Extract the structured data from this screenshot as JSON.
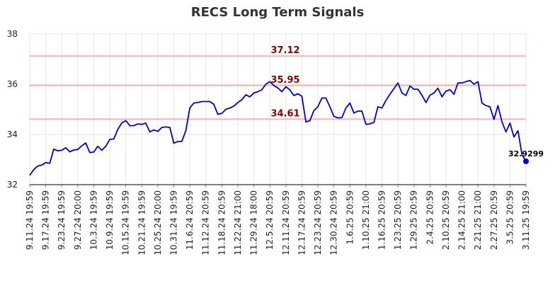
{
  "chart_data": {
    "type": "line",
    "title": "RECS Long Term Signals",
    "xlabel": "",
    "ylabel": "",
    "ylim": [
      32,
      38
    ],
    "yticks": [
      32,
      34,
      36,
      38
    ],
    "grid": true,
    "colors": {
      "line": "#0000cc",
      "ref_line": "#f5b5b5",
      "ref_label": "#8b0000",
      "grid": "#e6e6e6",
      "axis": "#000000"
    },
    "x_tick_labels": [
      "9.11.24 19:59",
      "9.17.24 19:59",
      "9.23.24 19:59",
      "9.27.24 20:00",
      "10.3.24 19:59",
      "10.9.24 19:59",
      "10.15.24 19:59",
      "10.21.24 19:59",
      "10.25.24 20:00",
      "10.31.24 19:59",
      "11.6.24 20:59",
      "11.12.24 20:59",
      "11.18.24 20:59",
      "11.22.24 21:00",
      "11.29.24 18:00",
      "12.5.24 20:59",
      "12.11.24 20:59",
      "12.17.24 20:59",
      "12.23.24 20:59",
      "12.30.24 20:59",
      "1.6.25 20:59",
      "1.10.25 21:00",
      "1.16.25 20:59",
      "1.23.25 20:59",
      "1.29.25 20:59",
      "2.4.25 20:59",
      "2.10.25 20:59",
      "2.14.25 21:00",
      "2.21.25 21:00",
      "2.27.25 20:59",
      "3.5.25 20:59",
      "3.11.25 19:59"
    ],
    "reference_lines": [
      {
        "value": 37.12,
        "label": "37.12"
      },
      {
        "value": 35.95,
        "label": "35.95"
      },
      {
        "value": 34.61,
        "label": "34.61"
      }
    ],
    "series": [
      {
        "values": [
          32.37,
          32.6,
          32.74,
          32.78,
          32.88,
          32.85,
          33.41,
          33.35,
          33.37,
          33.47,
          33.31,
          33.38,
          33.4,
          33.55,
          33.66,
          33.28,
          33.3,
          33.53,
          33.37,
          33.53,
          33.8,
          33.82,
          34.2,
          34.45,
          34.55,
          34.35,
          34.35,
          34.42,
          34.4,
          34.45,
          34.1,
          34.18,
          34.12,
          34.28,
          34.3,
          34.28,
          33.65,
          33.72,
          33.72,
          34.15,
          35.05,
          35.25,
          35.27,
          35.31,
          35.31,
          35.31,
          35.2,
          34.8,
          34.84,
          35.0,
          35.05,
          35.13,
          35.27,
          35.38,
          35.58,
          35.5,
          35.65,
          35.7,
          35.78,
          36.0,
          36.1,
          35.95,
          35.85,
          35.7,
          35.9,
          35.77,
          35.55,
          35.62,
          35.52,
          34.5,
          34.55,
          34.95,
          35.1,
          35.45,
          35.45,
          35.1,
          34.72,
          34.66,
          34.67,
          35.05,
          35.25,
          34.85,
          34.93,
          34.93,
          34.4,
          34.42,
          34.48,
          35.1,
          35.05,
          35.35,
          35.6,
          35.82,
          36.05,
          35.65,
          35.55,
          35.93,
          35.8,
          35.8,
          35.56,
          35.27,
          35.56,
          35.65,
          35.84,
          35.5,
          35.72,
          35.78,
          35.6,
          36.05,
          36.05,
          36.1,
          36.15,
          36.0,
          36.1,
          35.25,
          35.15,
          35.1,
          34.6,
          35.15,
          34.5,
          34.1,
          34.45,
          33.9,
          34.15,
          33.2,
          32.9299
        ]
      }
    ],
    "last_point_label": "32.9299"
  }
}
